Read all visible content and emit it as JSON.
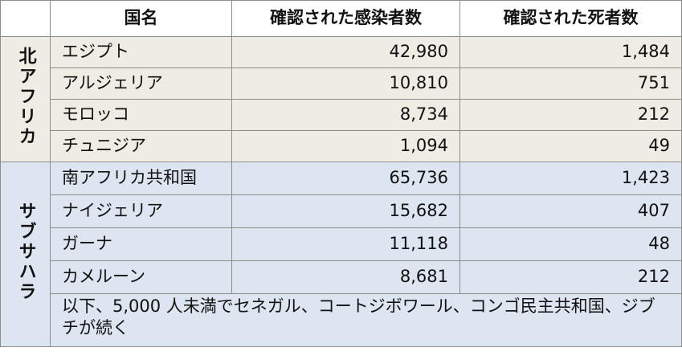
{
  "headers": [
    "国名",
    "確認された感染者数",
    "確認された死者数"
  ],
  "groups": [
    {
      "name": "北アフリカ",
      "rows": [
        {
          "country": "エジプト",
          "cases": "42,980",
          "deaths": "1,484"
        },
        {
          "country": "アルジェリア",
          "cases": "10,810",
          "deaths": "751"
        },
        {
          "country": "モロッコ",
          "cases": "8,734",
          "deaths": "212"
        },
        {
          "country": "チュニジア",
          "cases": "1,094",
          "deaths": "49"
        }
      ]
    },
    {
      "name": "サブサハラ",
      "rows": [
        {
          "country": "南アフリカ共和国",
          "cases": "65,736",
          "deaths": "1,423"
        },
        {
          "country": "ナイジェリア",
          "cases": "15,682",
          "deaths": "407"
        },
        {
          "country": "ガーナ",
          "cases": "11,118",
          "deaths": "48"
        },
        {
          "country": "カメルーン",
          "cases": "8,681",
          "deaths": "212"
        }
      ],
      "note": "以下、5,000 人未満でセネガル、コートジボワール、コンゴ民主共和国、ジブチが続く"
    }
  ],
  "colors": {
    "north_bg": "#efece4",
    "south_bg": "#dde5f0",
    "border": "#8c8c8c"
  }
}
